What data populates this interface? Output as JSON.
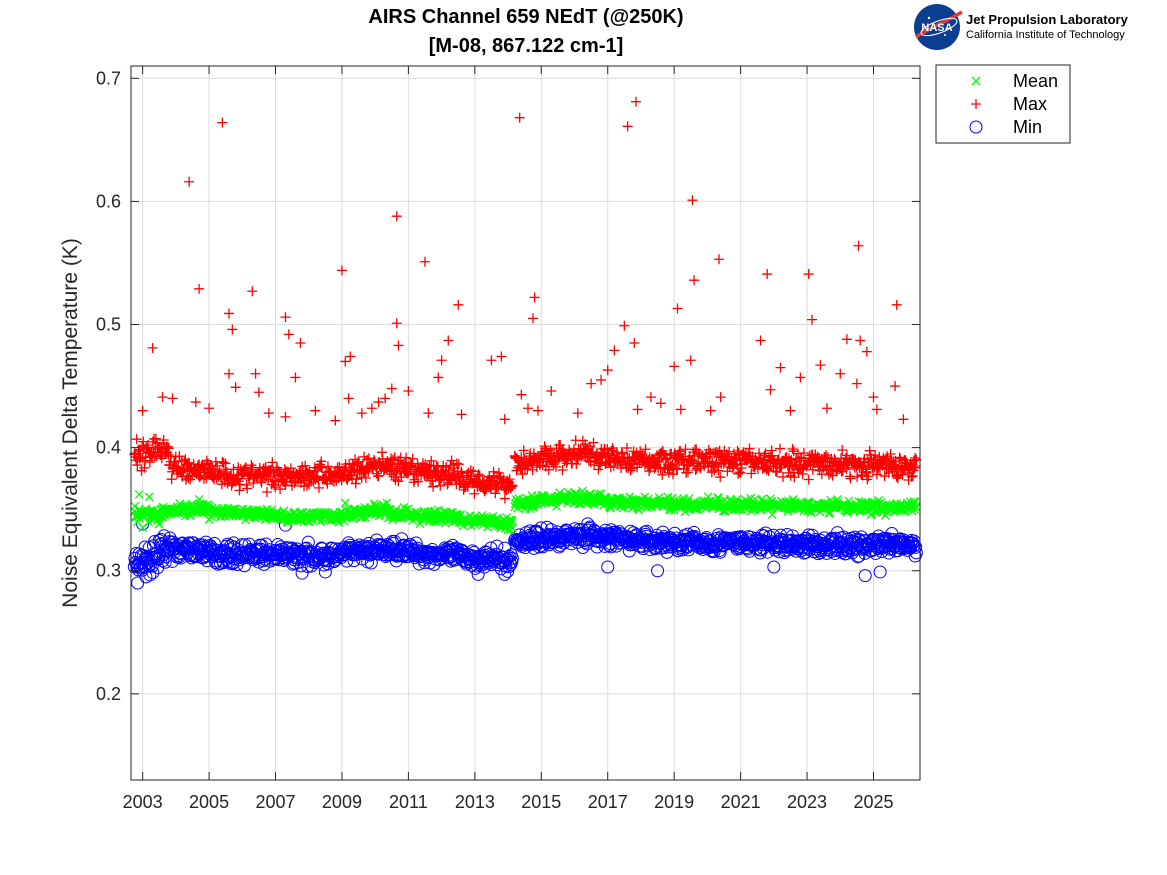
{
  "chart_data": {
    "type": "scatter",
    "title": "AIRS Channel 659 NEdT (@250K)",
    "subtitle": "[M-08, 867.122 cm-1]",
    "xlabel": "",
    "ylabel": "Noise Equivalent Delta Temperature (K)",
    "xlim": [
      2002.65,
      2026.4
    ],
    "ylim": [
      0.13,
      0.71
    ],
    "xticks": [
      2003,
      2005,
      2007,
      2009,
      2011,
      2013,
      2015,
      2017,
      2019,
      2021,
      2023,
      2025
    ],
    "xtick_labels": [
      "2003",
      "2005",
      "2007",
      "2009",
      "2011",
      "2013",
      "2015",
      "2017",
      "2019",
      "2021",
      "2023",
      "2025"
    ],
    "yticks": [
      0.2,
      0.3,
      0.4,
      0.5,
      0.6,
      0.7
    ],
    "ytick_labels": [
      "0.2",
      "0.3",
      "0.4",
      "0.5",
      "0.6",
      "0.7"
    ],
    "grid": true,
    "legend_position": "outside-top-right",
    "series": [
      {
        "name": "Mean",
        "marker": "x",
        "color": "#00ff00",
        "segments": [
          {
            "x0": 2002.75,
            "x1": 2003.6,
            "y0": 0.348,
            "y1": 0.345
          },
          {
            "x0": 2003.6,
            "x1": 2005.0,
            "y0": 0.35,
            "y1": 0.349
          },
          {
            "x0": 2005.0,
            "x1": 2007.0,
            "y0": 0.348,
            "y1": 0.345
          },
          {
            "x0": 2007.0,
            "x1": 2009.2,
            "y0": 0.344,
            "y1": 0.345
          },
          {
            "x0": 2009.2,
            "x1": 2010.4,
            "y0": 0.346,
            "y1": 0.35
          },
          {
            "x0": 2010.4,
            "x1": 2012.5,
            "y0": 0.346,
            "y1": 0.343
          },
          {
            "x0": 2012.5,
            "x1": 2014.15,
            "y0": 0.342,
            "y1": 0.338
          },
          {
            "x0": 2014.2,
            "x1": 2015.5,
            "y0": 0.355,
            "y1": 0.358
          },
          {
            "x0": 2015.5,
            "x1": 2016.8,
            "y0": 0.359,
            "y1": 0.358
          },
          {
            "x0": 2016.8,
            "x1": 2019.0,
            "y0": 0.356,
            "y1": 0.354
          },
          {
            "x0": 2019.0,
            "x1": 2026.3,
            "y0": 0.354,
            "y1": 0.351
          }
        ],
        "noise": 0.0035,
        "outliers": [
          {
            "x": 2002.9,
            "y": 0.362
          },
          {
            "x": 2003.0,
            "y": 0.335
          },
          {
            "x": 2003.2,
            "y": 0.36
          },
          {
            "x": 2003.5,
            "y": 0.338
          },
          {
            "x": 2004.7,
            "y": 0.358
          },
          {
            "x": 2007.35,
            "y": 0.339
          },
          {
            "x": 2009.1,
            "y": 0.355
          },
          {
            "x": 2010.35,
            "y": 0.355
          }
        ]
      },
      {
        "name": "Max",
        "marker": "+",
        "color": "#ff0000",
        "segments": [
          {
            "x0": 2002.75,
            "x1": 2003.8,
            "y0": 0.395,
            "y1": 0.4
          },
          {
            "x0": 2003.8,
            "x1": 2005.5,
            "y0": 0.384,
            "y1": 0.38
          },
          {
            "x0": 2005.5,
            "x1": 2009.0,
            "y0": 0.377,
            "y1": 0.378
          },
          {
            "x0": 2009.0,
            "x1": 2010.5,
            "y0": 0.38,
            "y1": 0.387
          },
          {
            "x0": 2010.5,
            "x1": 2012.5,
            "y0": 0.382,
            "y1": 0.378
          },
          {
            "x0": 2012.5,
            "x1": 2014.15,
            "y0": 0.375,
            "y1": 0.37
          },
          {
            "x0": 2014.2,
            "x1": 2016.5,
            "y0": 0.388,
            "y1": 0.396
          },
          {
            "x0": 2016.5,
            "x1": 2019.0,
            "y0": 0.392,
            "y1": 0.388
          },
          {
            "x0": 2019.0,
            "x1": 2026.3,
            "y0": 0.39,
            "y1": 0.385
          }
        ],
        "noise": 0.007,
        "outliers": [
          {
            "x": 2003.0,
            "y": 0.43
          },
          {
            "x": 2003.3,
            "y": 0.481
          },
          {
            "x": 2003.6,
            "y": 0.441
          },
          {
            "x": 2003.9,
            "y": 0.44
          },
          {
            "x": 2004.4,
            "y": 0.616
          },
          {
            "x": 2004.7,
            "y": 0.529
          },
          {
            "x": 2004.6,
            "y": 0.437
          },
          {
            "x": 2005.0,
            "y": 0.432
          },
          {
            "x": 2005.4,
            "y": 0.664
          },
          {
            "x": 2005.6,
            "y": 0.509
          },
          {
            "x": 2005.7,
            "y": 0.496
          },
          {
            "x": 2005.6,
            "y": 0.46
          },
          {
            "x": 2005.8,
            "y": 0.449
          },
          {
            "x": 2006.3,
            "y": 0.527
          },
          {
            "x": 2006.4,
            "y": 0.46
          },
          {
            "x": 2006.5,
            "y": 0.445
          },
          {
            "x": 2006.8,
            "y": 0.428
          },
          {
            "x": 2007.3,
            "y": 0.506
          },
          {
            "x": 2007.4,
            "y": 0.492
          },
          {
            "x": 2007.6,
            "y": 0.457
          },
          {
            "x": 2007.75,
            "y": 0.485
          },
          {
            "x": 2007.3,
            "y": 0.425
          },
          {
            "x": 2008.2,
            "y": 0.43
          },
          {
            "x": 2008.8,
            "y": 0.422
          },
          {
            "x": 2009.0,
            "y": 0.544
          },
          {
            "x": 2009.1,
            "y": 0.47
          },
          {
            "x": 2009.25,
            "y": 0.474
          },
          {
            "x": 2009.2,
            "y": 0.44
          },
          {
            "x": 2009.6,
            "y": 0.428
          },
          {
            "x": 2009.9,
            "y": 0.432
          },
          {
            "x": 2010.1,
            "y": 0.437
          },
          {
            "x": 2010.3,
            "y": 0.44
          },
          {
            "x": 2010.5,
            "y": 0.448
          },
          {
            "x": 2010.65,
            "y": 0.588
          },
          {
            "x": 2010.65,
            "y": 0.501
          },
          {
            "x": 2010.7,
            "y": 0.483
          },
          {
            "x": 2011.0,
            "y": 0.446
          },
          {
            "x": 2011.5,
            "y": 0.551
          },
          {
            "x": 2011.6,
            "y": 0.428
          },
          {
            "x": 2011.9,
            "y": 0.457
          },
          {
            "x": 2012.0,
            "y": 0.471
          },
          {
            "x": 2012.2,
            "y": 0.487
          },
          {
            "x": 2012.5,
            "y": 0.516
          },
          {
            "x": 2012.6,
            "y": 0.427
          },
          {
            "x": 2013.5,
            "y": 0.471
          },
          {
            "x": 2013.8,
            "y": 0.474
          },
          {
            "x": 2013.9,
            "y": 0.423
          },
          {
            "x": 2014.35,
            "y": 0.668
          },
          {
            "x": 2014.4,
            "y": 0.443
          },
          {
            "x": 2014.6,
            "y": 0.432
          },
          {
            "x": 2014.8,
            "y": 0.522
          },
          {
            "x": 2014.75,
            "y": 0.505
          },
          {
            "x": 2014.9,
            "y": 0.43
          },
          {
            "x": 2015.3,
            "y": 0.446
          },
          {
            "x": 2016.1,
            "y": 0.428
          },
          {
            "x": 2016.5,
            "y": 0.452
          },
          {
            "x": 2016.8,
            "y": 0.455
          },
          {
            "x": 2017.0,
            "y": 0.463
          },
          {
            "x": 2017.2,
            "y": 0.479
          },
          {
            "x": 2017.5,
            "y": 0.499
          },
          {
            "x": 2017.6,
            "y": 0.661
          },
          {
            "x": 2017.85,
            "y": 0.681
          },
          {
            "x": 2017.8,
            "y": 0.485
          },
          {
            "x": 2017.9,
            "y": 0.431
          },
          {
            "x": 2018.3,
            "y": 0.441
          },
          {
            "x": 2018.6,
            "y": 0.436
          },
          {
            "x": 2019.0,
            "y": 0.466
          },
          {
            "x": 2019.1,
            "y": 0.513
          },
          {
            "x": 2019.2,
            "y": 0.431
          },
          {
            "x": 2019.55,
            "y": 0.601
          },
          {
            "x": 2019.6,
            "y": 0.536
          },
          {
            "x": 2019.5,
            "y": 0.471
          },
          {
            "x": 2020.1,
            "y": 0.43
          },
          {
            "x": 2020.35,
            "y": 0.553
          },
          {
            "x": 2020.4,
            "y": 0.441
          },
          {
            "x": 2021.6,
            "y": 0.487
          },
          {
            "x": 2021.8,
            "y": 0.541
          },
          {
            "x": 2021.9,
            "y": 0.447
          },
          {
            "x": 2022.2,
            "y": 0.465
          },
          {
            "x": 2022.5,
            "y": 0.43
          },
          {
            "x": 2022.8,
            "y": 0.457
          },
          {
            "x": 2023.05,
            "y": 0.541
          },
          {
            "x": 2023.15,
            "y": 0.504
          },
          {
            "x": 2023.4,
            "y": 0.467
          },
          {
            "x": 2023.6,
            "y": 0.432
          },
          {
            "x": 2024.0,
            "y": 0.46
          },
          {
            "x": 2024.2,
            "y": 0.488
          },
          {
            "x": 2024.55,
            "y": 0.564
          },
          {
            "x": 2024.6,
            "y": 0.487
          },
          {
            "x": 2024.8,
            "y": 0.478
          },
          {
            "x": 2024.5,
            "y": 0.452
          },
          {
            "x": 2025.0,
            "y": 0.441
          },
          {
            "x": 2025.1,
            "y": 0.431
          },
          {
            "x": 2025.7,
            "y": 0.516
          },
          {
            "x": 2025.65,
            "y": 0.45
          },
          {
            "x": 2025.9,
            "y": 0.423
          }
        ]
      },
      {
        "name": "Min",
        "marker": "o",
        "color": "#0000ff",
        "segments": [
          {
            "x0": 2002.75,
            "x1": 2003.5,
            "y0": 0.305,
            "y1": 0.31
          },
          {
            "x0": 2003.5,
            "x1": 2005.0,
            "y0": 0.318,
            "y1": 0.316
          },
          {
            "x0": 2005.0,
            "x1": 2009.0,
            "y0": 0.314,
            "y1": 0.312
          },
          {
            "x0": 2009.0,
            "x1": 2011.0,
            "y0": 0.314,
            "y1": 0.318
          },
          {
            "x0": 2011.0,
            "x1": 2014.15,
            "y0": 0.315,
            "y1": 0.308
          },
          {
            "x0": 2014.2,
            "x1": 2016.5,
            "y0": 0.324,
            "y1": 0.33
          },
          {
            "x0": 2016.5,
            "x1": 2019.0,
            "y0": 0.327,
            "y1": 0.323
          },
          {
            "x0": 2019.0,
            "x1": 2026.3,
            "y0": 0.323,
            "y1": 0.32
          }
        ],
        "noise": 0.0055,
        "outliers": [
          {
            "x": 2002.85,
            "y": 0.29
          },
          {
            "x": 2003.0,
            "y": 0.338
          },
          {
            "x": 2003.1,
            "y": 0.295
          },
          {
            "x": 2007.3,
            "y": 0.337
          },
          {
            "x": 2007.8,
            "y": 0.298
          },
          {
            "x": 2008.5,
            "y": 0.299
          },
          {
            "x": 2013.1,
            "y": 0.297
          },
          {
            "x": 2013.9,
            "y": 0.297
          },
          {
            "x": 2017.0,
            "y": 0.303
          },
          {
            "x": 2018.5,
            "y": 0.3
          },
          {
            "x": 2022.0,
            "y": 0.303
          },
          {
            "x": 2024.75,
            "y": 0.296
          },
          {
            "x": 2025.2,
            "y": 0.299
          }
        ]
      }
    ]
  },
  "logo": {
    "agency": "NASA",
    "title": "Jet Propulsion Laboratory",
    "subtitle": "California Institute of Technology"
  }
}
